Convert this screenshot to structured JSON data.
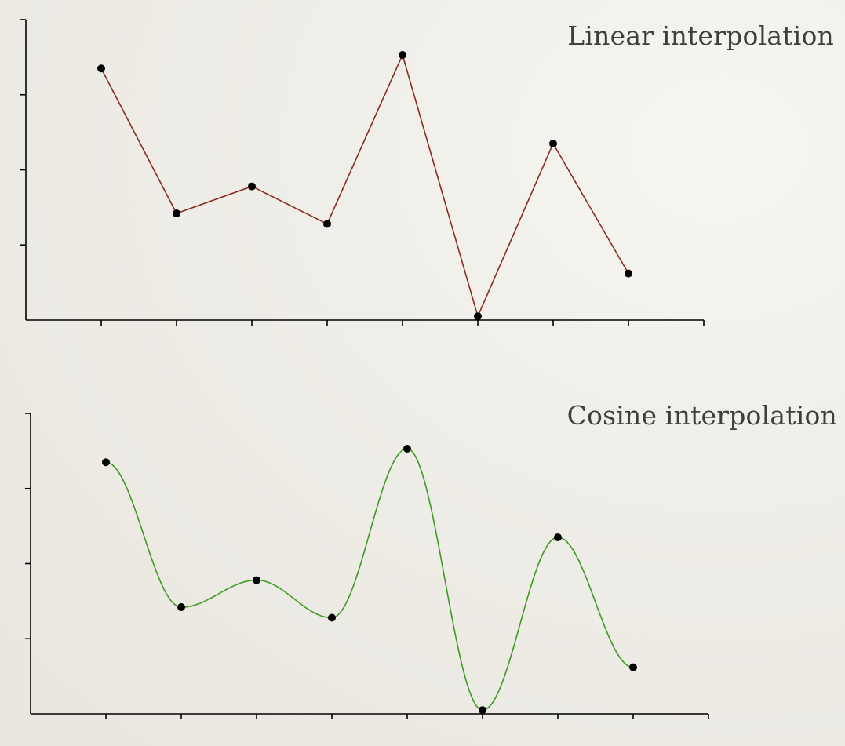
{
  "chart_data": [
    {
      "type": "line",
      "title": "Linear interpolation",
      "interpolation": "linear",
      "xlabel": "",
      "ylabel": "",
      "x": [
        1,
        2,
        3,
        4,
        5,
        6,
        7,
        8
      ],
      "series": [
        {
          "values": [
            3.35,
            1.42,
            1.78,
            1.28,
            3.53,
            0.05,
            2.35,
            0.62
          ],
          "color": "#8b2a1f"
        }
      ],
      "xlim": [
        0,
        9
      ],
      "ylim": [
        0,
        4
      ],
      "marker_color": "#000000",
      "axis_color": "#000000",
      "grid": false,
      "legend": "none"
    },
    {
      "type": "line",
      "title": "Cosine interpolation",
      "interpolation": "cosine",
      "xlabel": "",
      "ylabel": "",
      "x": [
        1,
        2,
        3,
        4,
        5,
        6,
        7,
        8
      ],
      "series": [
        {
          "values": [
            3.35,
            1.42,
            1.78,
            1.28,
            3.53,
            0.05,
            2.35,
            0.62
          ],
          "color": "#3d9a22"
        }
      ],
      "xlim": [
        0,
        9
      ],
      "ylim": [
        0,
        4
      ],
      "marker_color": "#000000",
      "axis_color": "#000000",
      "grid": false,
      "legend": "none"
    }
  ]
}
